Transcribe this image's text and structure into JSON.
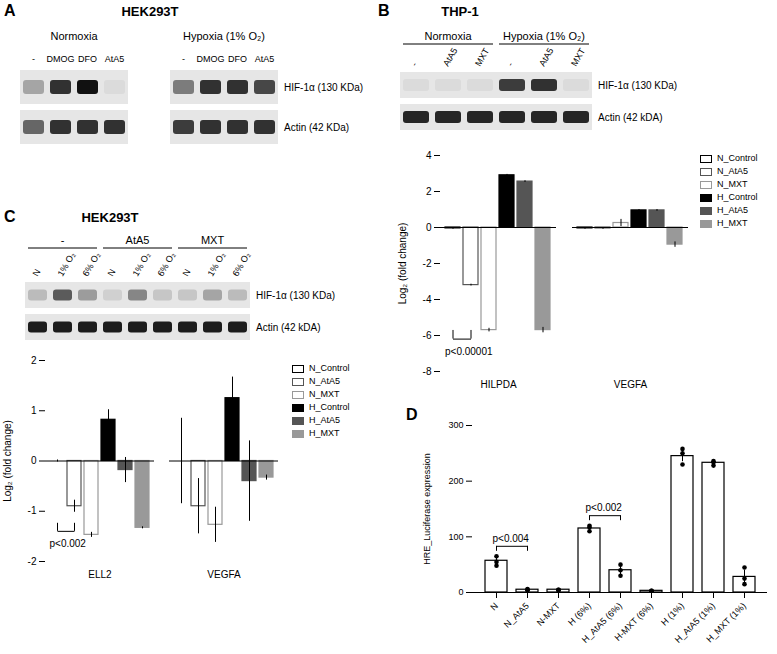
{
  "chart_data": [
    {
      "type": "blot",
      "panel": "A",
      "title": "HEK293T",
      "conditions": [
        {
          "label": "Normoxia",
          "lanes": [
            "-",
            "DMOG",
            "DFO",
            "AtA5"
          ]
        },
        {
          "label": "Hypoxia (1% O₂)",
          "lanes": [
            "-",
            "DMOG",
            "DFO",
            "AtA5"
          ]
        }
      ],
      "rows": [
        {
          "label": "HIF-1α (130 KDa)",
          "intensity": [
            0.3,
            0.85,
            1,
            0.05,
            0.5,
            0.85,
            0.85,
            0.75
          ]
        },
        {
          "label": "Actin (42 KDa)",
          "intensity": [
            0.6,
            0.85,
            0.85,
            0.85,
            0.8,
            0.85,
            0.85,
            0.85
          ]
        }
      ]
    },
    {
      "type": "blot",
      "panel": "B",
      "title": "THP-1",
      "conditions": [
        {
          "label": "Normoxia",
          "lanes": [
            "-",
            "AtA5",
            "MXT"
          ]
        },
        {
          "label": "Hypoxia (1% O₂)",
          "lanes": [
            "-",
            "AtA5",
            "MXT"
          ]
        }
      ],
      "rows": [
        {
          "label": "HIF-1α (130 KDa)",
          "intensity": [
            0.05,
            0.05,
            0.05,
            0.8,
            0.85,
            0.05
          ]
        },
        {
          "label": "Actin (42 kDA)",
          "intensity": [
            0.9,
            0.9,
            0.9,
            0.9,
            0.9,
            0.9
          ]
        }
      ]
    },
    {
      "type": "bar",
      "y_label": "Log₂ (fold change)",
      "ylim": [
        -8,
        4
      ],
      "yticks": [
        -8,
        -6,
        -4,
        -2,
        0,
        2,
        4
      ],
      "categories": [
        "HILPDA",
        "VEGFA"
      ],
      "legend": "right",
      "series": [
        {
          "name": "N_Control",
          "color": "#000000",
          "marker": "hollow",
          "values": [
            -0.05,
            -0.05
          ],
          "errors": [
            0.05,
            0.05
          ]
        },
        {
          "name": "N_AtA5",
          "color": "#555555",
          "marker": "hollow",
          "values": [
            -3.2,
            -0.05
          ],
          "errors": [
            0.05,
            0.05
          ]
        },
        {
          "name": "N_MXT",
          "color": "#999999",
          "marker": "hollow",
          "values": [
            -5.7,
            0.25
          ],
          "errors": [
            0.1,
            0.2
          ]
        },
        {
          "name": "H_Control",
          "color": "#000000",
          "marker": "filled",
          "values": [
            2.9,
            0.95
          ],
          "errors": [
            0.05,
            0.05
          ]
        },
        {
          "name": "H_AtA5",
          "color": "#555555",
          "marker": "filled",
          "values": [
            2.55,
            0.95
          ],
          "errors": [
            0.05,
            0.05
          ]
        },
        {
          "name": "H_MXT",
          "color": "#999999",
          "marker": "filled",
          "values": [
            -5.7,
            -0.95
          ],
          "errors": [
            0.15,
            0.15
          ]
        }
      ],
      "annotations": [
        {
          "text": "p<0.00001",
          "category": "HILPDA",
          "from": "N_Control",
          "to": "N_AtA5"
        }
      ]
    },
    {
      "type": "blot",
      "panel": "C",
      "title": "HEK293T",
      "conditions": [
        {
          "label": "-",
          "lanes": [
            "N",
            "1% O₂",
            "6% O₂"
          ]
        },
        {
          "label": "AtA5",
          "lanes": [
            "N",
            "1% O₂",
            "6% O₂"
          ]
        },
        {
          "label": "MXT",
          "lanes": [
            "N",
            "1% O₂",
            "6% O₂"
          ]
        }
      ],
      "rows": [
        {
          "label": "HIF-1α (130 KDa)",
          "intensity": [
            0.2,
            0.65,
            0.35,
            0.1,
            0.45,
            0.15,
            0.15,
            0.3,
            0.2
          ]
        },
        {
          "label": "Actin (42 kDA)",
          "intensity": [
            0.95,
            0.95,
            0.95,
            0.95,
            0.95,
            0.95,
            0.95,
            0.95,
            0.95
          ]
        }
      ]
    },
    {
      "type": "bar",
      "y_label": "Log₂ (fold change)",
      "ylim": [
        -2,
        2
      ],
      "yticks": [
        -2,
        -1,
        0,
        1,
        2
      ],
      "categories": [
        "ELL2",
        "VEGFA"
      ],
      "legend": "right",
      "series": [
        {
          "name": "N_Control",
          "color": "#000000",
          "marker": "hollow",
          "values": [
            0,
            0
          ],
          "errors": [
            0.02,
            0.85
          ]
        },
        {
          "name": "N_AtA5",
          "color": "#555555",
          "marker": "hollow",
          "values": [
            -0.9,
            -0.9
          ],
          "errors": [
            0.12,
            0.55
          ]
        },
        {
          "name": "N_MXT",
          "color": "#999999",
          "marker": "hollow",
          "values": [
            -1.47,
            -1.27
          ],
          "errors": [
            0.05,
            0.35
          ]
        },
        {
          "name": "H_Control",
          "color": "#000000",
          "marker": "filled",
          "values": [
            0.82,
            1.25
          ],
          "errors": [
            0.2,
            0.42
          ]
        },
        {
          "name": "H_AtA5",
          "color": "#555555",
          "marker": "filled",
          "values": [
            -0.18,
            -0.4
          ],
          "errors": [
            0.25,
            0.8
          ]
        },
        {
          "name": "H_MXT",
          "color": "#999999",
          "marker": "filled",
          "values": [
            -1.33,
            -0.33
          ],
          "errors": [
            0.02,
            0.05
          ]
        }
      ],
      "annotations": [
        {
          "text": "p<0.002",
          "category": "ELL2",
          "from": "N_Control",
          "to": "N_AtA5"
        }
      ]
    },
    {
      "type": "bar",
      "panel": "D",
      "y_label": "HRE_Luciferase expression",
      "ylim": [
        0,
        300
      ],
      "yticks": [
        0,
        100,
        200,
        300
      ],
      "categories": [
        "N",
        "N_AtA5",
        "N-MXT",
        "H (6%)",
        "H_AtA5 (6%)",
        "H-MXT (6%)",
        "H (1%)",
        "H_AtA5 (1%)",
        "H_MXT (1%)"
      ],
      "values": [
        57,
        5,
        5,
        115,
        40,
        3,
        245,
        233,
        28
      ],
      "errors": [
        8,
        1,
        1,
        5,
        9,
        1,
        10,
        4,
        12
      ],
      "points": [
        [
          48,
          55,
          65
        ],
        [
          4,
          5,
          6
        ],
        [
          4,
          5,
          5
        ],
        [
          110,
          117,
          120
        ],
        [
          30,
          40,
          50
        ],
        [
          2,
          3,
          3
        ],
        [
          230,
          250,
          258
        ],
        [
          228,
          234,
          236
        ],
        [
          15,
          25,
          45
        ]
      ],
      "color": "#000000",
      "marker": "hollow",
      "annotations": [
        {
          "text": "p<0.004",
          "from": "N",
          "to": "N_AtA5"
        },
        {
          "text": "p<0.002",
          "from": "H (6%)",
          "to": "H_AtA5 (6%)"
        }
      ]
    }
  ]
}
